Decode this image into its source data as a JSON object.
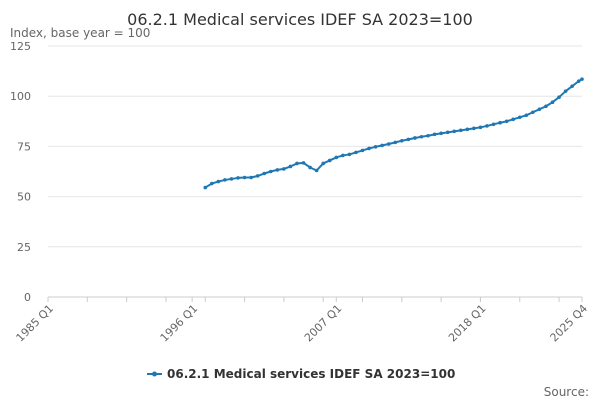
{
  "chart_data": {
    "type": "line",
    "title": "06.2.1 Medical services IDEF SA 2023=100",
    "subtitle": "Index, base year = 100",
    "xlabel": "",
    "ylabel": "Index, base year = 100",
    "ylim": [
      0,
      125
    ],
    "yticks": [
      0,
      25,
      50,
      75,
      100,
      125
    ],
    "xlim": [
      1985.0,
      2025.75
    ],
    "x_ticks": [
      {
        "label": "1985 Q1",
        "x": 1985.0
      },
      {
        "label": "1996 Q1",
        "x": 1996.0
      },
      {
        "label": "2007 Q1",
        "x": 2007.0
      },
      {
        "label": "2018 Q1",
        "x": 2018.0
      },
      {
        "label": "2025 Q4",
        "x": 2025.75
      }
    ],
    "x_minor_ticks": [
      1985,
      1988,
      1991,
      1994,
      1997,
      2000,
      2003,
      2006,
      2009,
      2012,
      2015,
      2018,
      2021,
      2024
    ],
    "legend": "bottom-center",
    "grid": true,
    "series": [
      {
        "name": "06.2.1 Medical services IDEF SA 2023=100",
        "color": "#1f78b4",
        "points": [
          [
            1997.0,
            54.5
          ],
          [
            1997.5,
            56.5
          ],
          [
            1998.0,
            57.5
          ],
          [
            1998.5,
            58.3
          ],
          [
            1999.0,
            58.8
          ],
          [
            1999.5,
            59.3
          ],
          [
            2000.0,
            59.5
          ],
          [
            2000.5,
            59.5
          ],
          [
            2001.0,
            60.3
          ],
          [
            2001.5,
            61.5
          ],
          [
            2002.0,
            62.5
          ],
          [
            2002.5,
            63.3
          ],
          [
            2003.0,
            63.8
          ],
          [
            2003.5,
            65.0
          ],
          [
            2004.0,
            66.5
          ],
          [
            2004.5,
            66.8
          ],
          [
            2005.0,
            64.5
          ],
          [
            2005.5,
            63.0
          ],
          [
            2006.0,
            66.5
          ],
          [
            2006.5,
            68.0
          ],
          [
            2007.0,
            69.5
          ],
          [
            2007.5,
            70.5
          ],
          [
            2008.0,
            71.0
          ],
          [
            2008.5,
            72.0
          ],
          [
            2009.0,
            73.0
          ],
          [
            2009.5,
            74.0
          ],
          [
            2010.0,
            74.8
          ],
          [
            2010.5,
            75.5
          ],
          [
            2011.0,
            76.2
          ],
          [
            2011.5,
            77.0
          ],
          [
            2012.0,
            77.8
          ],
          [
            2012.5,
            78.5
          ],
          [
            2013.0,
            79.2
          ],
          [
            2013.5,
            79.8
          ],
          [
            2014.0,
            80.3
          ],
          [
            2014.5,
            81.0
          ],
          [
            2015.0,
            81.5
          ],
          [
            2015.5,
            82.0
          ],
          [
            2016.0,
            82.5
          ],
          [
            2016.5,
            83.0
          ],
          [
            2017.0,
            83.5
          ],
          [
            2017.5,
            84.0
          ],
          [
            2018.0,
            84.5
          ],
          [
            2018.5,
            85.2
          ],
          [
            2019.0,
            86.0
          ],
          [
            2019.5,
            86.8
          ],
          [
            2020.0,
            87.5
          ],
          [
            2020.5,
            88.5
          ],
          [
            2021.0,
            89.5
          ],
          [
            2021.5,
            90.5
          ],
          [
            2022.0,
            92.0
          ],
          [
            2022.5,
            93.5
          ],
          [
            2023.0,
            95.0
          ],
          [
            2023.5,
            97.0
          ],
          [
            2024.0,
            99.5
          ],
          [
            2024.5,
            102.5
          ],
          [
            2025.0,
            105.0
          ],
          [
            2025.5,
            107.5
          ],
          [
            2025.75,
            108.5
          ]
        ]
      }
    ],
    "source": "Source:"
  }
}
